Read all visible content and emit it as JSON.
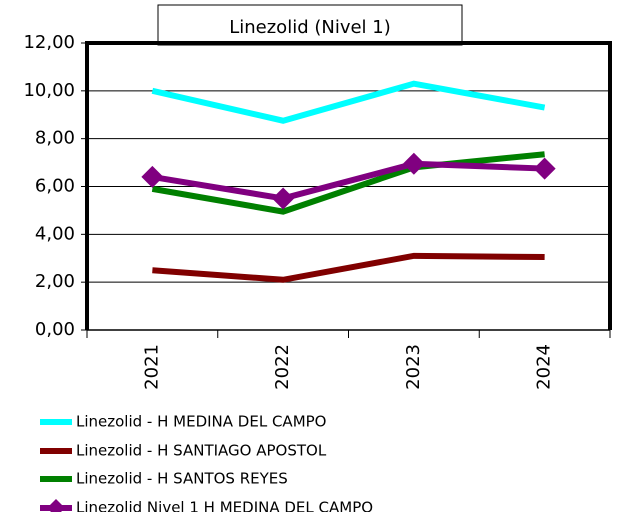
{
  "chart_data": {
    "type": "line",
    "title": "Linezolid (Nivel 1)",
    "categories": [
      "2021",
      "2022",
      "2023",
      "2024"
    ],
    "series": [
      {
        "name": "Linezolid -  H MEDINA DEL CAMPO",
        "color": "#00ffff",
        "values": [
          10.0,
          8.75,
          10.3,
          9.3
        ]
      },
      {
        "name": "Linezolid -  H SANTIAGO APOSTOL",
        "color": "#800000",
        "values": [
          2.5,
          2.1,
          3.1,
          3.05
        ]
      },
      {
        "name": "Linezolid -  H SANTOS REYES",
        "color": "#008000",
        "values": [
          5.9,
          4.95,
          6.8,
          7.35
        ]
      },
      {
        "name": "Linezolid Nivel 1 H MEDINA DEL CAMPO",
        "color": "#800080",
        "marker": "diamond",
        "values": [
          6.4,
          5.5,
          6.95,
          6.75
        ]
      }
    ],
    "ylim": [
      0,
      12
    ],
    "yticks": [
      {
        "value": 0,
        "label": "0,00"
      },
      {
        "value": 2,
        "label": "2,00"
      },
      {
        "value": 4,
        "label": "4,00"
      },
      {
        "value": 6,
        "label": "6,00"
      },
      {
        "value": 8,
        "label": "8,00"
      },
      {
        "value": 10,
        "label": "10,00"
      },
      {
        "value": 12,
        "label": "12,00"
      }
    ],
    "grid": true
  }
}
